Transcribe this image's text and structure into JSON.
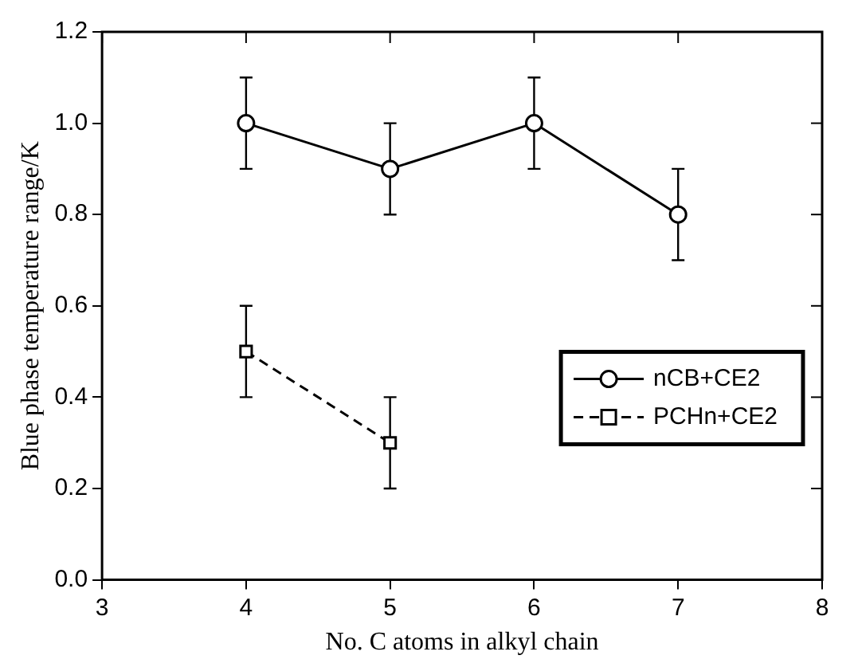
{
  "chart_data": {
    "type": "line",
    "xlabel": "No. C atoms in alkyl chain",
    "ylabel": "Blue phase temperature range/K",
    "xlim": [
      3,
      8
    ],
    "xticks": [
      3,
      4,
      5,
      6,
      7,
      8
    ],
    "ylim": [
      0,
      1.2
    ],
    "yticks": [
      {
        "value": 0,
        "label": "0.0"
      },
      0.2,
      0.4,
      0.6,
      0.8,
      {
        "value": 1,
        "label": "1.0"
      },
      {
        "value": 1.2,
        "label": "1.2"
      }
    ],
    "legend": "bottom right",
    "grid": false,
    "series": [
      {
        "name": "nCB+CE2",
        "color": "#000000",
        "marker": "circle",
        "line_style": "solid",
        "x": [
          4,
          5,
          6,
          7
        ],
        "values": [
          1.0,
          0.9,
          1.0,
          0.8
        ],
        "errors": [
          0.1,
          0.1,
          0.1,
          0.1
        ]
      },
      {
        "name": "PCHn+CE2",
        "color": "#000000",
        "marker": "square",
        "line_style": "dashed",
        "x": [
          4,
          5
        ],
        "values": [
          0.5,
          0.3
        ],
        "errors": [
          0.1,
          0.1
        ]
      }
    ]
  }
}
